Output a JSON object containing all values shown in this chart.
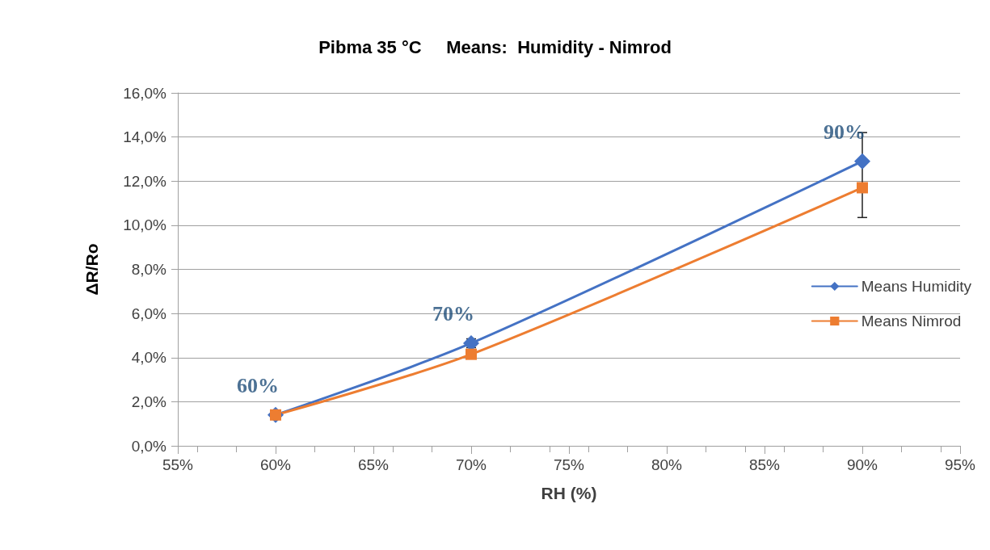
{
  "chart_data": {
    "type": "line",
    "title": "Pibma 35 °C     Means:  Humidity - Nimrod",
    "xlabel": "RH (%)",
    "ylabel": "ΔR/Ro",
    "x": [
      60,
      70,
      90
    ],
    "series": [
      {
        "name": "Means Humidity",
        "color": "#4472c4",
        "values": [
          1.4,
          4.65,
          12.9
        ],
        "marker": "diamond",
        "errors": [
          null,
          0.2,
          [
            10.35,
            14.2
          ]
        ]
      },
      {
        "name": "Means Nimrod",
        "color": "#ed7d31",
        "values": [
          1.4,
          4.15,
          11.7
        ],
        "marker": "square"
      }
    ],
    "xlim": [
      55,
      95
    ],
    "xticks": [
      {
        "value": 55,
        "label": "55%"
      },
      {
        "value": 60,
        "label": "60%"
      },
      {
        "value": 65,
        "label": "65%"
      },
      {
        "value": 70,
        "label": "70%"
      },
      {
        "value": 75,
        "label": "75%"
      },
      {
        "value": 80,
        "label": "80%"
      },
      {
        "value": 85,
        "label": "85%"
      },
      {
        "value": 90,
        "label": "90%"
      },
      {
        "value": 95,
        "label": "95%"
      }
    ],
    "ylim": [
      0,
      16
    ],
    "yticks": [
      {
        "value": 0,
        "label": "0,0%"
      },
      {
        "value": 2,
        "label": "2,0%"
      },
      {
        "value": 4,
        "label": "4,0%"
      },
      {
        "value": 6,
        "label": "6,0%"
      },
      {
        "value": 8,
        "label": "8,0%"
      },
      {
        "value": 10,
        "label": "10,0%"
      },
      {
        "value": 12,
        "label": "12,0%"
      },
      {
        "value": 14,
        "label": "14,0%"
      },
      {
        "value": 16,
        "label": "16,0%"
      }
    ],
    "grid": "y",
    "legend": "right",
    "line_style": "solid",
    "annotations": [
      {
        "text": "60%",
        "x": 60,
        "y": 1.4
      },
      {
        "text": "70%",
        "x": 70,
        "y": 4.65
      },
      {
        "text": "90%",
        "x": 90,
        "y": 12.9
      }
    ]
  }
}
